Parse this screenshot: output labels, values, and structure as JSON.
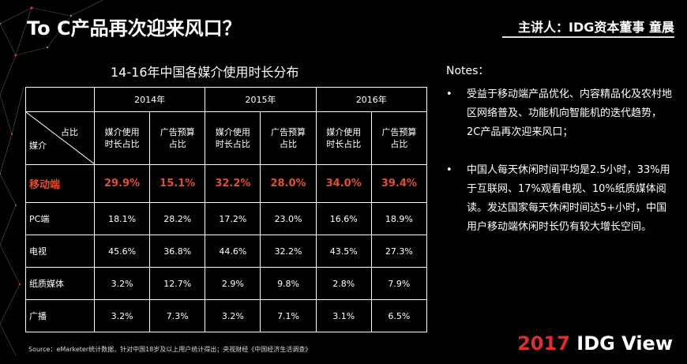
{
  "header": {
    "title": "To C产品再次迎来风口？",
    "speaker": "主讲人：IDG资本董事 童晨"
  },
  "table": {
    "title": "14-16年中国各媒介使用时长分布",
    "diag_top": "占比",
    "diag_bottom": "媒介",
    "years": [
      "2014年",
      "2015年",
      "2016年"
    ],
    "col_a": "媒介使用时长占比",
    "col_a_l1": "媒介使用",
    "col_a_l2": "时长占比",
    "col_b_l1": "广告预算",
    "col_b_l2": "占比",
    "rows": [
      {
        "name": "移动端",
        "values": [
          "29.9%",
          "15.1%",
          "32.2%",
          "28.0%",
          "34.0%",
          "39.4%"
        ]
      },
      {
        "name": "PC端",
        "values": [
          "18.1%",
          "28.2%",
          "17.2%",
          "23.0%",
          "16.6%",
          "18.9%"
        ]
      },
      {
        "name": "电视",
        "values": [
          "45.6%",
          "36.8%",
          "44.6%",
          "32.2%",
          "43.5%",
          "27.3%"
        ]
      },
      {
        "name": "纸质媒体",
        "values": [
          "3.2%",
          "12.7%",
          "2.9%",
          "9.8%",
          "2.8%",
          "7.9%"
        ]
      },
      {
        "name": "广播",
        "values": [
          "3.2%",
          "7.3%",
          "3.2%",
          "7.1%",
          "3.1%",
          "6.5%"
        ]
      }
    ],
    "highlight_color": "#e0502c"
  },
  "notes": {
    "heading": "Notes：",
    "bullet": "•",
    "items": [
      "受益于移动端产品优化、内容精品化及农村地区网络普及、功能机向智能机的迭代趋势，2C产品再次迎来风口；",
      "中国人每天休闲时间平均是2.5小时，33%用于互联网、17%观看电视、10%纸质媒体阅读。发达国家每天休闲时间达5+小时，中国用户移动端休闲时长仍有较大增长空间。"
    ]
  },
  "footer": {
    "source": "Source：eMarketer统计数据，针对中国18岁及以上用户统计得出；央视财经《中国经济生活调查》",
    "brand_year": "2017",
    "brand_name": "IDG View",
    "brand_color": "#d9302b"
  }
}
